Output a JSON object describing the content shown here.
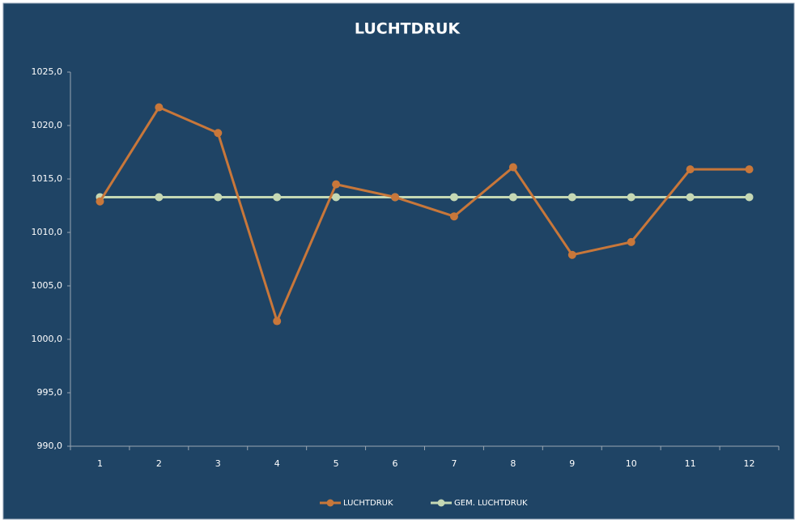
{
  "chart_data": {
    "type": "line",
    "title": "LUCHTDRUK",
    "categories": [
      "1",
      "2",
      "3",
      "4",
      "5",
      "6",
      "7",
      "8",
      "9",
      "10",
      "11",
      "12"
    ],
    "series": [
      {
        "name": "LUCHTDRUK",
        "color": "#c8773a",
        "values": [
          1012.9,
          1021.7,
          1019.3,
          1001.7,
          1014.5,
          1013.3,
          1011.5,
          1016.1,
          1007.9,
          1009.1,
          1015.9,
          1015.9
        ]
      },
      {
        "name": "GEM. LUCHTDRUK",
        "color": "#c5d8b4",
        "values": [
          1013.3,
          1013.3,
          1013.3,
          1013.3,
          1013.3,
          1013.3,
          1013.3,
          1013.3,
          1013.3,
          1013.3,
          1013.3,
          1013.3
        ]
      }
    ],
    "ylim": [
      990,
      1025
    ],
    "yticks": [
      {
        "value": 990,
        "label": "990,0"
      },
      {
        "value": 995,
        "label": "995,0"
      },
      {
        "value": 1000,
        "label": "1000,0"
      },
      {
        "value": 1005,
        "label": "1005,0"
      },
      {
        "value": 1010,
        "label": "1010,0"
      },
      {
        "value": 1015,
        "label": "1015,0"
      },
      {
        "value": 1020,
        "label": "1020,0"
      },
      {
        "value": 1025,
        "label": "1025,0"
      }
    ],
    "legend": "bottom"
  }
}
